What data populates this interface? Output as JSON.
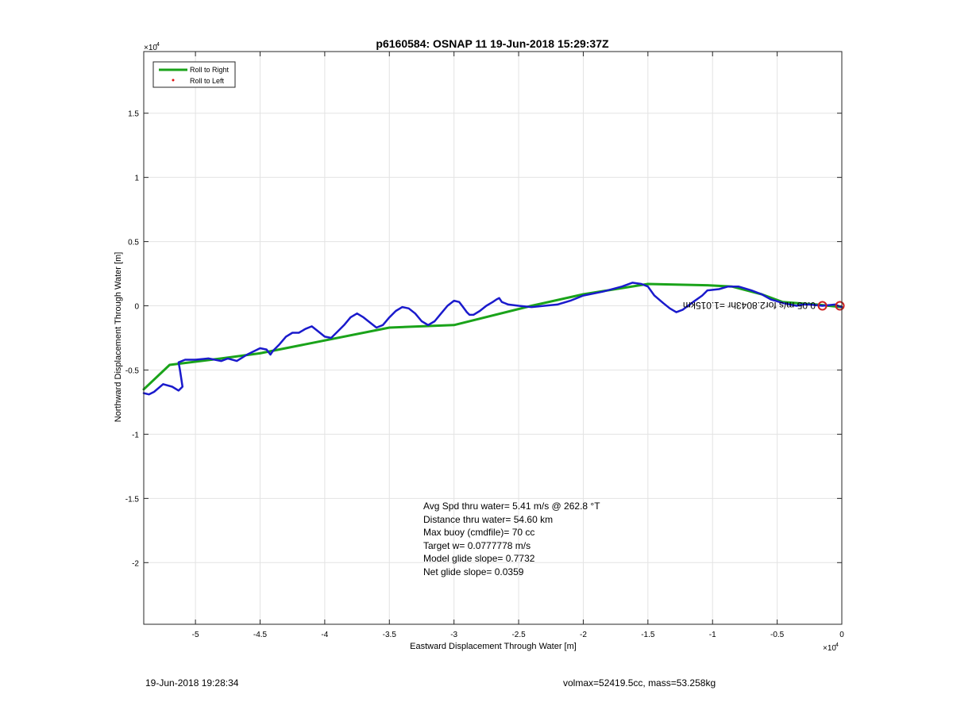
{
  "chart_data": {
    "type": "line",
    "title": "p6160584: OSNAP 11 19-Jun-2018 15:29:37Z",
    "xlabel": "Eastward Displacement Through Water [m]",
    "ylabel": "Northward Displacement Through Water [m]",
    "x_exponent_label": "×10",
    "x_exponent": "4",
    "y_exponent_label": "×10",
    "y_exponent": "4",
    "xlim": [
      -54000,
      0
    ],
    "ylim": [
      -24800,
      19800
    ],
    "x_ticks": [
      -50000,
      -45000,
      -40000,
      -35000,
      -30000,
      -25000,
      -20000,
      -15000,
      -10000,
      -5000,
      0
    ],
    "x_tick_labels": [
      "-5",
      "-4.5",
      "-4",
      "-3.5",
      "-3",
      "-2.5",
      "-2",
      "-1.5",
      "-1",
      "-0.5",
      "0"
    ],
    "y_ticks": [
      -20000,
      -15000,
      -10000,
      -5000,
      0,
      5000,
      10000,
      15000
    ],
    "y_tick_labels": [
      "-2",
      "-1.5",
      "-1",
      "-0.5",
      "0",
      "0.5",
      "1",
      "1.5"
    ],
    "grid": true,
    "legend_placement": "top-left",
    "legend": [
      {
        "label": "Roll to Right",
        "color": "#1aa31a",
        "marker": "line"
      },
      {
        "label": "Roll to Left",
        "color": "#e01010",
        "marker": "dot"
      }
    ],
    "series": [
      {
        "name": "Roll to Right",
        "color": "#1aa31a",
        "x": [
          0,
          -2000,
          -4600,
          -6200,
          -8500,
          -10400,
          -15000,
          -20000,
          -24000,
          -30000,
          -35000,
          -45000,
          -48000,
          -52000,
          -54000
        ],
        "y": [
          -100,
          100,
          300,
          900,
          1500,
          1600,
          1700,
          900,
          0,
          -1500,
          -1700,
          -3700,
          -4100,
          -4600,
          -6500
        ]
      },
      {
        "name": "track",
        "color": "#1a1acc",
        "x": [
          0,
          -300,
          -500,
          -1500,
          -2500,
          -3000,
          -3500,
          -4500,
          -5500,
          -6200,
          -7000,
          -8000,
          -8800,
          -9500,
          -10400,
          -10800,
          -11500,
          -12300,
          -12800,
          -13300,
          -13800,
          -14500,
          -15000,
          -15500,
          -16200,
          -17000,
          -18500,
          -20000,
          -21000,
          -22000,
          -23000,
          -24000,
          -25000,
          -25800,
          -26300,
          -26500,
          -26700,
          -27000,
          -27500,
          -28000,
          -28500,
          -28800,
          -29000,
          -29300,
          -29600,
          -30000,
          -30500,
          -31000,
          -31500,
          -32000,
          -32500,
          -33000,
          -33500,
          -34000,
          -34500,
          -35000,
          -35500,
          -36000,
          -36500,
          -37000,
          -37500,
          -38000,
          -38500,
          -39000,
          -39500,
          -40000,
          -40500,
          -41000,
          -41500,
          -42000,
          -42500,
          -43000,
          -43500,
          -44000,
          -44200,
          -44500,
          -45000,
          -46000,
          -46800,
          -47500,
          -48000,
          -49000,
          -50000,
          -50800,
          -51300,
          -51200,
          -51000,
          -51300,
          -51800,
          -52500,
          -53200,
          -53600,
          -54000
        ],
        "y": [
          -100,
          0,
          100,
          0,
          100,
          100,
          0,
          200,
          500,
          900,
          1200,
          1500,
          1500,
          1300,
          1200,
          800,
          300,
          -300,
          -500,
          -200,
          200,
          800,
          1500,
          1700,
          1800,
          1500,
          1100,
          800,
          400,
          100,
          0,
          -100,
          0,
          100,
          300,
          600,
          500,
          300,
          0,
          -400,
          -700,
          -700,
          -500,
          -100,
          300,
          400,
          0,
          -600,
          -1200,
          -1500,
          -1200,
          -600,
          -200,
          -100,
          -400,
          -900,
          -1500,
          -1700,
          -1300,
          -900,
          -600,
          -900,
          -1500,
          -2000,
          -2500,
          -2400,
          -2000,
          -1600,
          -1800,
          -2100,
          -2100,
          -2400,
          -3000,
          -3500,
          -3800,
          -3400,
          -3300,
          -3800,
          -4300,
          -4100,
          -4300,
          -4100,
          -4200,
          -4200,
          -4400,
          -5000,
          -6300,
          -6600,
          -6300,
          -6100,
          -6700,
          -6900,
          -6800
        ]
      }
    ],
    "markers": [
      {
        "name": "start",
        "x": -1500,
        "y": 0,
        "color": "#cc2222"
      },
      {
        "name": "end",
        "x": -150,
        "y": 0,
        "color": "#cc2222"
      }
    ],
    "annotations": {
      "stats": [
        "Avg Spd thru water=  5.41 m/s @ 262.8 °T",
        "Distance thru water= 54.60 km",
        "Max buoy (cmdfile)= 70 cc",
        "Target w= 0.0777778 m/s",
        "Model glide slope= 0.7732",
        "Net glide slope= 0.0359"
      ],
      "mirrored_label": "0.05 m/s for2.8043hr =1.015km"
    }
  },
  "footer": {
    "timestamp": "19-Jun-2018 19:28:34",
    "params": "volmax=52419.5cc, mass=53.258kg"
  },
  "colors": {
    "axis": "#262626",
    "grid": "#e3e3e3",
    "axes_bg": "#ffffff",
    "marker_ring": "#d02a2a"
  }
}
